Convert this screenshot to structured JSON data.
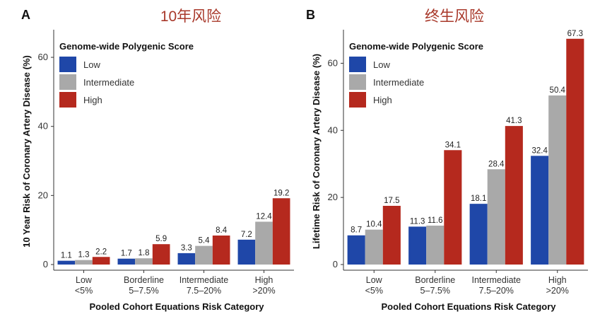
{
  "chart_data": [
    {
      "type": "bar",
      "panel_label": "A",
      "title": "10年风险",
      "xlabel": "Pooled Cohort Equations Risk Category",
      "ylabel": "10 Year Risk of Coronary Artery Disease (%)",
      "categories": [
        [
          "Low",
          "<5%"
        ],
        [
          "Borderline",
          "5–7.5%"
        ],
        [
          "Intermediate",
          "7.5–20%"
        ],
        [
          "High",
          ">20%"
        ]
      ],
      "series": [
        {
          "name": "Low",
          "color": "#1f47a8",
          "values": [
            1.1,
            1.7,
            3.3,
            7.2
          ]
        },
        {
          "name": "Intermediate",
          "color": "#a9a9a9",
          "values": [
            1.3,
            1.8,
            5.4,
            12.4
          ]
        },
        {
          "name": "High",
          "color": "#b5291e",
          "values": [
            2.2,
            5.9,
            8.4,
            19.2
          ]
        }
      ],
      "ylim": [
        0,
        68
      ],
      "yticks": [
        0,
        20,
        40,
        60
      ],
      "legend": {
        "title": "Genome-wide Polygenic Score",
        "position": "top-left"
      },
      "grid": false
    },
    {
      "type": "bar",
      "panel_label": "B",
      "title": "终生风险",
      "xlabel": "Pooled Cohort Equations Risk Category",
      "ylabel": "Lifetime Risk of Coronary Artery Disease (%)",
      "categories": [
        [
          "Low",
          "<5%"
        ],
        [
          "Borderline",
          "5–7.5%"
        ],
        [
          "Intermediate",
          "7.5–20%"
        ],
        [
          "High",
          ">20%"
        ]
      ],
      "series": [
        {
          "name": "Low",
          "color": "#1f47a8",
          "values": [
            8.7,
            11.3,
            18.1,
            32.4
          ]
        },
        {
          "name": "Intermediate",
          "color": "#a9a9a9",
          "values": [
            10.4,
            11.6,
            28.4,
            50.4
          ]
        },
        {
          "name": "High",
          "color": "#b5291e",
          "values": [
            17.5,
            34.1,
            41.3,
            67.3
          ]
        }
      ],
      "ylim": [
        0,
        70
      ],
      "yticks": [
        0,
        20,
        40,
        60
      ],
      "legend": {
        "title": "Genome-wide Polygenic Score",
        "position": "top-left"
      },
      "grid": false
    }
  ]
}
